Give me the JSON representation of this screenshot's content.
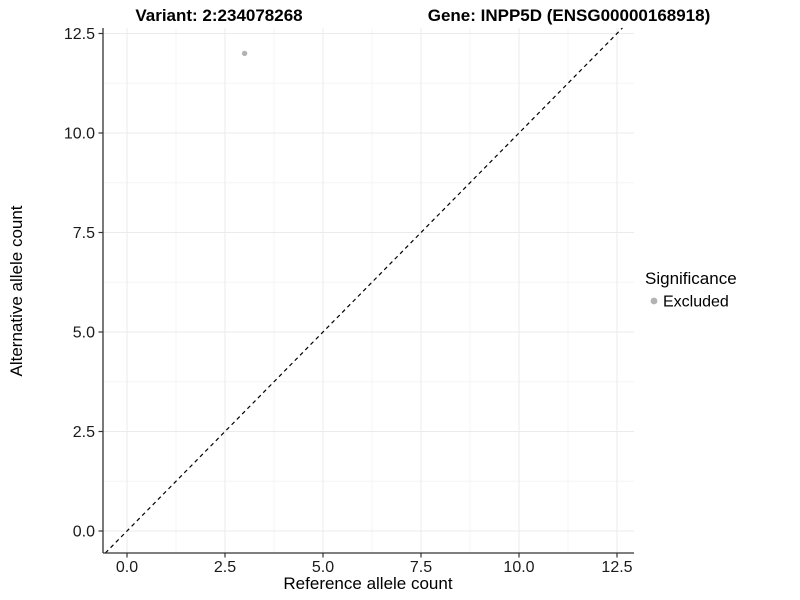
{
  "chart_data": {
    "type": "scatter",
    "title_left": "Variant: 2:234078268",
    "title_right": "Gene: INPP5D (ENSG00000168918)",
    "xlabel": "Reference allele count",
    "ylabel": "Alternative allele count",
    "x_ticks": [
      0,
      2.5,
      5,
      7.5,
      10,
      12.5
    ],
    "y_ticks": [
      0,
      2.5,
      5,
      7.5,
      10,
      12.5
    ],
    "xlim": [
      -0.62,
      13.0
    ],
    "ylim": [
      -0.55,
      12.64
    ],
    "grid": "major+minor",
    "points": [
      {
        "x": 3,
        "y": 12,
        "series": "Excluded"
      }
    ],
    "abline": {
      "slope": 1,
      "intercept": 0,
      "style": "dashed",
      "color": "#000000"
    },
    "legend": {
      "title": "Significance",
      "position": "right",
      "items": [
        {
          "label": "Excluded",
          "color": "#b3b3b3"
        }
      ]
    },
    "colors": {
      "point": "#b3b3b3",
      "grid_major": "#ebebeb",
      "grid_minor": "#f5f5f5",
      "axis_line": "#333333",
      "tick_mark": "#333333"
    }
  }
}
